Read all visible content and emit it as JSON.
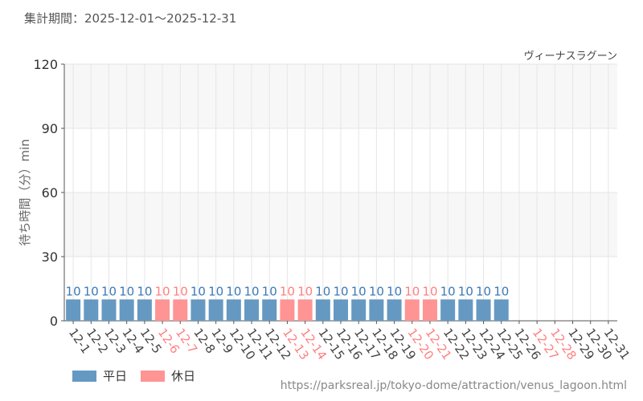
{
  "period": "集計期間：2025-12-01～2025-12-31",
  "url": "https://parksreal.jp/tokyo-dome/attraction/venus_lagoon.html",
  "chart_data": {
    "type": "bar",
    "title": "ヴィーナスラグーン",
    "ylabel": "待ち時間（分）min",
    "xlabel": "",
    "ylim": [
      0,
      120
    ],
    "yticks": [
      0,
      30,
      60,
      90,
      120
    ],
    "grid": true,
    "legend_placement": "bottom-left",
    "categories": [
      "12-1",
      "12-2",
      "12-3",
      "12-4",
      "12-5",
      "12-6",
      "12-7",
      "12-8",
      "12-9",
      "12-10",
      "12-11",
      "12-12",
      "12-13",
      "12-14",
      "12-15",
      "12-16",
      "12-17",
      "12-18",
      "12-19",
      "12-20",
      "12-21",
      "12-22",
      "12-23",
      "12-24",
      "12-25",
      "12-26",
      "12-27",
      "12-28",
      "12-29",
      "12-30",
      "12-31"
    ],
    "values": [
      10,
      10,
      10,
      10,
      10,
      10,
      10,
      10,
      10,
      10,
      10,
      10,
      10,
      10,
      10,
      10,
      10,
      10,
      10,
      10,
      10,
      10,
      10,
      10,
      10,
      null,
      null,
      null,
      null,
      null,
      null
    ],
    "holiday": [
      false,
      false,
      false,
      false,
      false,
      true,
      true,
      false,
      false,
      false,
      false,
      false,
      true,
      true,
      false,
      false,
      false,
      false,
      false,
      true,
      true,
      false,
      false,
      false,
      false,
      false,
      true,
      true,
      false,
      false,
      false
    ],
    "series": [
      {
        "name": "平日",
        "color": "#6699c2",
        "label_color": "#3d7ab8"
      },
      {
        "name": "休日",
        "color": "#ff9494",
        "label_color": "#ff8080"
      }
    ]
  }
}
